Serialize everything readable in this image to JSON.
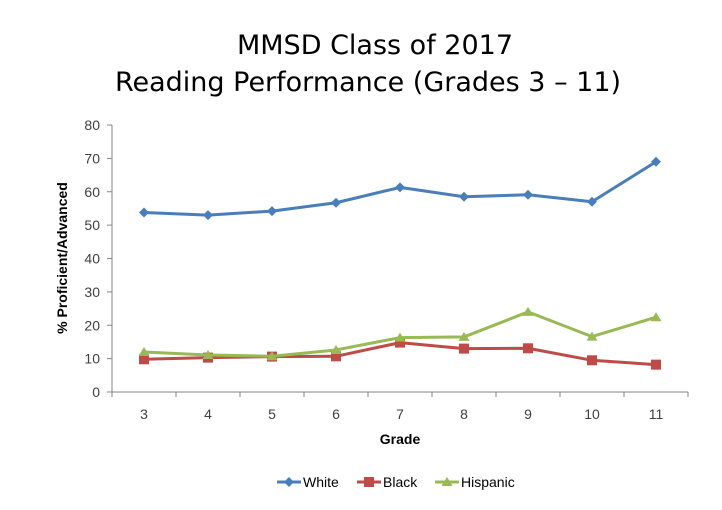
{
  "chart_data": {
    "type": "line",
    "title": "MMSD Class of 2017",
    "subtitle": "Reading Performance (Grades 3 – 11)",
    "xlabel": "Grade",
    "ylabel": "% Proficient/Advanced",
    "categories": [
      "3",
      "4",
      "5",
      "6",
      "7",
      "8",
      "9",
      "10",
      "11"
    ],
    "ylim": [
      0,
      80
    ],
    "yticks": [
      0,
      10,
      20,
      30,
      40,
      50,
      60,
      70,
      80
    ],
    "grid": false,
    "legend": "bottom",
    "series": [
      {
        "name": "White",
        "color": "#4a7ebb",
        "marker": "diamond",
        "values": [
          53.8,
          53.0,
          54.2,
          56.7,
          61.3,
          58.5,
          59.1,
          57.0,
          69.0
        ]
      },
      {
        "name": "Black",
        "color": "#be4b48",
        "marker": "square",
        "values": [
          9.8,
          10.3,
          10.6,
          10.7,
          14.8,
          13.0,
          13.1,
          9.5,
          8.2
        ]
      },
      {
        "name": "Hispanic",
        "color": "#98b954",
        "marker": "triangle",
        "values": [
          12.0,
          11.1,
          10.7,
          12.6,
          16.3,
          16.5,
          24.0,
          16.6,
          22.4
        ]
      }
    ]
  }
}
